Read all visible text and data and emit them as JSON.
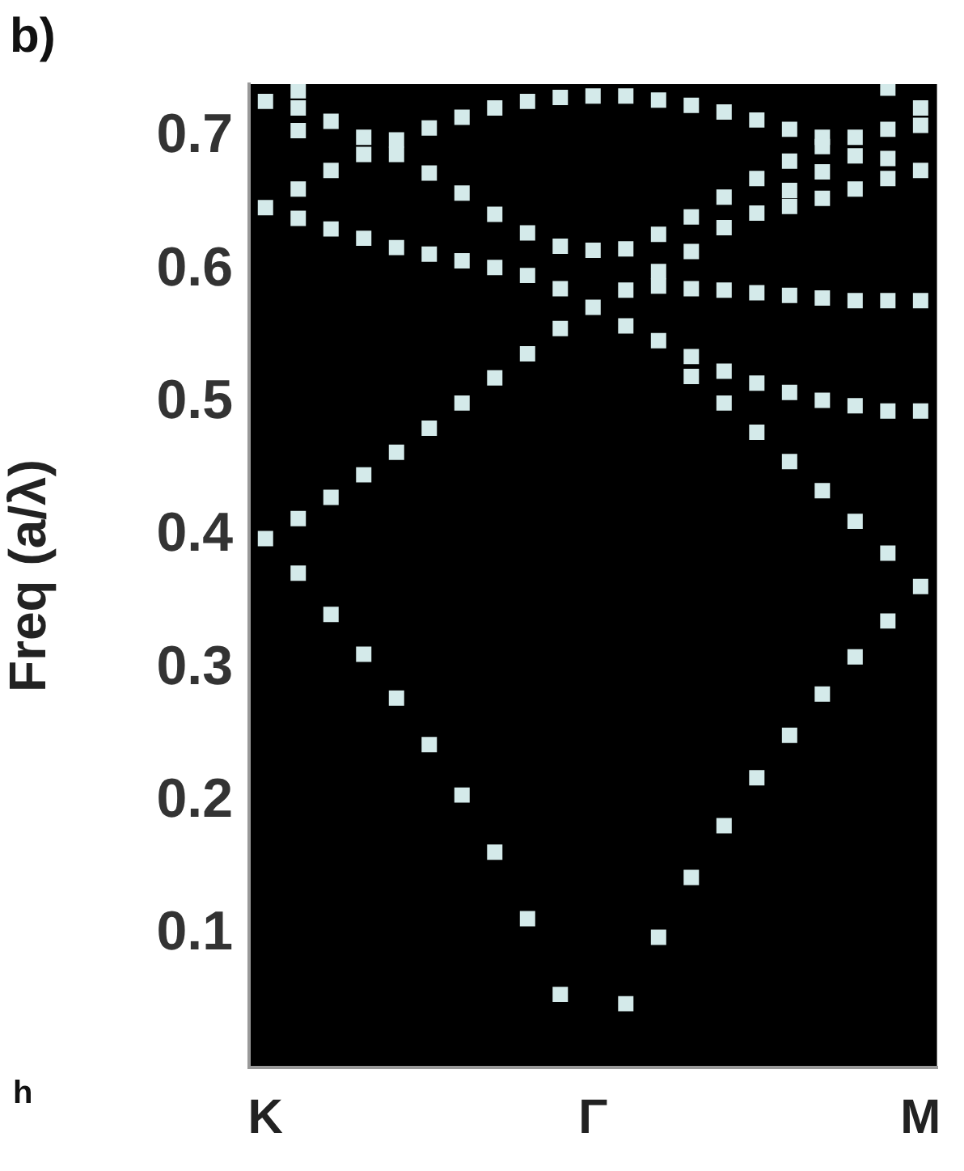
{
  "chart_data": {
    "type": "scatter",
    "ylabel": "Freq (a/λ)",
    "annotations": [
      "b)",
      "h"
    ],
    "categories": [
      "K",
      null,
      null,
      null,
      null,
      null,
      null,
      null,
      null,
      null,
      "Γ",
      null,
      null,
      null,
      null,
      null,
      null,
      null,
      null,
      null,
      "M"
    ],
    "series": [
      {
        "color": "#d4eaea",
        "values": [
          0.727,
          0.735,
          0.712,
          0.7,
          0.698,
          0.707,
          0.715,
          0.722,
          0.727,
          0.73,
          0.731,
          0.731,
          0.728,
          0.724,
          0.719,
          0.713,
          0.706,
          0.7,
          0.7,
          0.737,
          0.722
        ]
      },
      {
        "color": "#d4eaea",
        "values": [
          0.647,
          0.722,
          0.675,
          0.687,
          0.687,
          0.673,
          0.658,
          0.642,
          0.628,
          0.618,
          0.615,
          0.616,
          0.627,
          0.64,
          0.655,
          0.669,
          0.682,
          0.693,
          0.686,
          0.706,
          0.709
        ]
      },
      {
        "color": "#d4eaea",
        "values": [
          0.398,
          0.705,
          0.631,
          0.624,
          0.617,
          0.612,
          0.607,
          0.602,
          0.596,
          0.586,
          0.572,
          0.585,
          null,
          0.614,
          0.632,
          0.643,
          0.66,
          0.674,
          0.661,
          0.684,
          0.675
        ]
      },
      {
        "color": "#d4eaea",
        "values": [
          null,
          0.661,
          0.429,
          0.446,
          0.463,
          0.481,
          0.5,
          0.519,
          0.537,
          0.556,
          null,
          0.558,
          0.599,
          0.586,
          0.585,
          0.583,
          0.648,
          0.654,
          0.577,
          0.669,
          0.577
        ]
      },
      {
        "color": "#d4eaea",
        "values": [
          null,
          0.639,
          0.341,
          0.311,
          0.278,
          0.243,
          0.205,
          0.162,
          0.112,
          0.055,
          null,
          0.048,
          0.588,
          0.535,
          0.524,
          0.515,
          0.581,
          0.579,
          0.498,
          0.577,
          0.494
        ]
      },
      {
        "color": "#d4eaea",
        "values": [
          null,
          0.413,
          null,
          null,
          null,
          null,
          null,
          null,
          null,
          null,
          null,
          null,
          0.547,
          0.52,
          0.5,
          0.478,
          0.508,
          0.502,
          0.411,
          0.494,
          0.362
        ]
      },
      {
        "color": "#d4eaea",
        "values": [
          null,
          0.372,
          null,
          null,
          null,
          null,
          null,
          null,
          null,
          null,
          null,
          null,
          0.098,
          0.143,
          0.182,
          0.218,
          0.456,
          0.434,
          0.309,
          0.387,
          null
        ]
      },
      {
        "color": "#d4eaea",
        "values": [
          null,
          null,
          null,
          null,
          null,
          null,
          null,
          null,
          null,
          null,
          null,
          null,
          null,
          null,
          null,
          null,
          0.25,
          0.281,
          null,
          0.336,
          null
        ]
      }
    ],
    "marker": "square",
    "ylim": [
      0,
      0.74
    ],
    "yticks": [
      0.1,
      0.2,
      0.3,
      0.4,
      0.5,
      0.6,
      0.7
    ],
    "legend": false
  }
}
